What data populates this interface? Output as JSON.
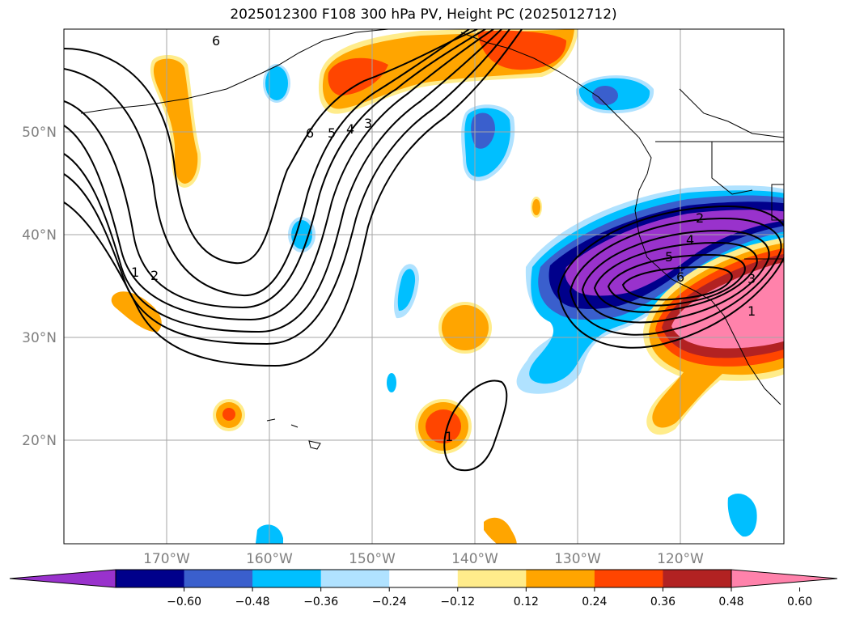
{
  "title": "2025012300 F108 300 hPa PV, Height PC (2025012712)",
  "map": {
    "lat_labels": [
      "50°N",
      "40°N",
      "30°N",
      "20°N"
    ],
    "lon_labels": [
      "170°W",
      "160°W",
      "150°W",
      "140°W",
      "130°W",
      "120°W"
    ],
    "grid_lines": true
  },
  "colorbar": {
    "tick_labels": [
      "−0.60",
      "−0.48",
      "−0.36",
      "−0.24",
      "−0.12",
      "0.12",
      "0.24",
      "0.36",
      "0.48",
      "0.60"
    ],
    "colors": [
      "#9932cc",
      "#00008b",
      "#3a5fcd",
      "#00bfff",
      "#b0e2ff",
      "#ffffff",
      "#ffec8b",
      "#ffa500",
      "#ff4500",
      "#b22222",
      "#ff82ab"
    ],
    "extend": "both"
  },
  "contour_labels": {
    "west_trough": [
      "6",
      "5",
      "4",
      "3",
      "1",
      "2",
      "6"
    ],
    "east_ridge": [
      "2",
      "4",
      "5",
      "6",
      "3",
      "1"
    ],
    "south_loop": "1"
  }
}
